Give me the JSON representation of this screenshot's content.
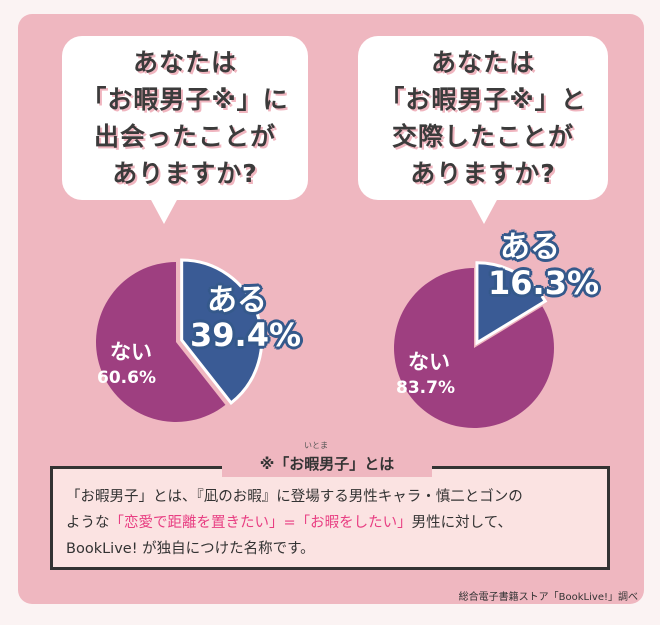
{
  "chart_data": [
    {
      "type": "pie",
      "title": "あなたは「お暇男子※」に出会ったことがありますか?",
      "slices": [
        {
          "label": "ある",
          "value": 39.4,
          "value_label": "39.4%",
          "color": "#3a5b95"
        },
        {
          "label": "ない",
          "value": 60.6,
          "value_label": "60.6%",
          "color": "#9e3f80"
        }
      ]
    },
    {
      "type": "pie",
      "title": "あなたは「お暇男子※」と交際したことがありますか?",
      "slices": [
        {
          "label": "ある",
          "value": 16.3,
          "value_label": "16.3%",
          "color": "#3a5b95"
        },
        {
          "label": "ない",
          "value": 83.7,
          "value_label": "83.7%",
          "color": "#9e3f80"
        }
      ]
    }
  ],
  "questions": {
    "q1": [
      "あなたは",
      "「お暇男子※」に",
      "出会ったことが",
      "ありますか?"
    ],
    "q2": [
      "あなたは",
      "「お暇男子※」と",
      "交際したことが",
      "ありますか?"
    ]
  },
  "footnote": {
    "title": "※「お暇男子」とは",
    "ruby": "いとま",
    "line1": "「お暇男子」とは、『凪のお暇』に登場する男性キャラ・慎二とゴンの",
    "line2_pre": "ような",
    "line2_pink": "「恋愛で距離を置きたい」=「お暇をしたい」",
    "line2_post": "男性に対して、",
    "line3": "BookLive! が独自につけた名称です。"
  },
  "source": "総合電子書籍ストア「BookLive!」調べ",
  "colors": {
    "yes": "#3a5b95",
    "no": "#9e3f80",
    "background": "#efb7c0",
    "accent": "#e83e82"
  }
}
